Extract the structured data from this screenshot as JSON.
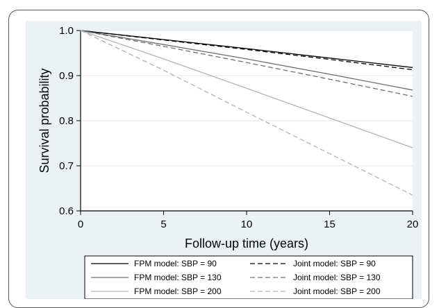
{
  "chart_data": {
    "type": "line",
    "xlabel": "Follow-up time (years)",
    "ylabel": "Survival probability",
    "xlim": [
      0,
      20
    ],
    "ylim": [
      0.6,
      1.0
    ],
    "xticks": [
      0,
      5,
      10,
      15,
      20
    ],
    "yticks": [
      1.0,
      0.9,
      0.8,
      0.7,
      0.6
    ],
    "xtick_labels": [
      "0",
      "5",
      "10",
      "15",
      "20"
    ],
    "ytick_labels": [
      "1.0",
      "0.9",
      "0.8",
      "0.7",
      "0.6"
    ],
    "grid": "horizontal",
    "legend_position": "bottom",
    "x": [
      0,
      5,
      10,
      15,
      20
    ],
    "series": [
      {
        "name": "FPM model: SBP = 90",
        "values": [
          1.0,
          0.98,
          0.96,
          0.939,
          0.918
        ],
        "color": "#000000",
        "dash": "solid"
      },
      {
        "name": "Joint model: SBP = 90",
        "values": [
          1.0,
          0.979,
          0.958,
          0.936,
          0.913
        ],
        "color": "#000000",
        "dash": "dashed"
      },
      {
        "name": "FPM model: SBP = 130",
        "values": [
          1.0,
          0.969,
          0.937,
          0.903,
          0.868
        ],
        "color": "#6e6e6e",
        "dash": "solid"
      },
      {
        "name": "Joint model: SBP = 130",
        "values": [
          1.0,
          0.965,
          0.929,
          0.892,
          0.854
        ],
        "color": "#6e6e6e",
        "dash": "dashed"
      },
      {
        "name": "FPM model: SBP = 200",
        "values": [
          1.0,
          0.937,
          0.872,
          0.806,
          0.74
        ],
        "color": "#b4b4b4",
        "dash": "solid"
      },
      {
        "name": "Joint model: SBP = 200",
        "values": [
          1.0,
          0.912,
          0.819,
          0.727,
          0.635
        ],
        "color": "#b4b4b4",
        "dash": "dashed"
      }
    ]
  }
}
